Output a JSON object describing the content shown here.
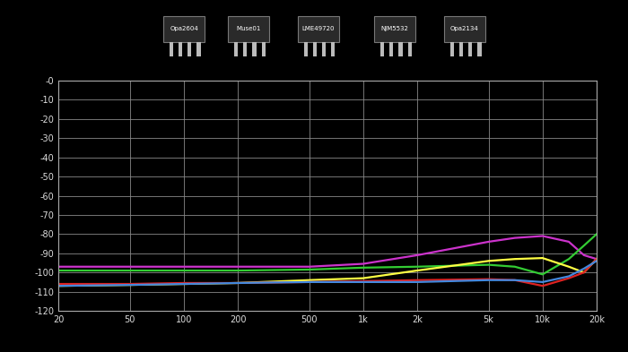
{
  "chart_data": {
    "type": "line",
    "annotations": [
      "Opa2604",
      "Muse01",
      "LME49720",
      "NJM5532",
      "Opa2134"
    ],
    "x": [
      20,
      50,
      100,
      200,
      500,
      1000,
      2000,
      5000,
      7000,
      10000,
      14000,
      17000,
      20000
    ],
    "series": [
      {
        "color": "#cc33cc",
        "values": [
          -97,
          -97,
          -97,
          -97,
          -97,
          -95.5,
          -91,
          -84,
          -82,
          -81,
          -84,
          -91,
          -93
        ]
      },
      {
        "color": "#33cc33",
        "values": [
          -99,
          -99,
          -99,
          -99,
          -98.5,
          -97.5,
          -97,
          -96,
          -97,
          -101,
          -93,
          -86,
          -80
        ]
      },
      {
        "color": "#ffff44",
        "values": [
          -107,
          -106.5,
          -106,
          -105.5,
          -104,
          -103,
          -99,
          -94,
          -93,
          -92.5,
          -97,
          -100,
          -93
        ]
      },
      {
        "color": "#dd2222",
        "values": [
          -106,
          -106,
          -105.5,
          -105.5,
          -105,
          -104.5,
          -104,
          -103.5,
          -104,
          -107,
          -103,
          -100,
          -93
        ]
      },
      {
        "color": "#4488dd",
        "values": [
          -107,
          -106.5,
          -106,
          -105.5,
          -105,
          -105,
          -105,
          -104,
          -104,
          -105,
          -102,
          -98,
          -94
        ]
      }
    ],
    "log": "x",
    "xlim": [
      20,
      20000
    ],
    "xticks": [
      20,
      50,
      100,
      200,
      500,
      {
        "value": 1000,
        "label": "1k"
      },
      {
        "value": 2000,
        "label": "2k"
      },
      {
        "value": 5000,
        "label": "5k"
      },
      {
        "value": 10000,
        "label": "10k"
      },
      {
        "value": 20000,
        "label": "20k"
      }
    ],
    "ylim": [
      -120,
      0
    ],
    "yticks": [
      {
        "value": 0,
        "label": "-0"
      },
      -10,
      -20,
      -30,
      -40,
      -50,
      -60,
      -70,
      -80,
      -90,
      -100,
      -110,
      -120
    ],
    "grid": true
  }
}
